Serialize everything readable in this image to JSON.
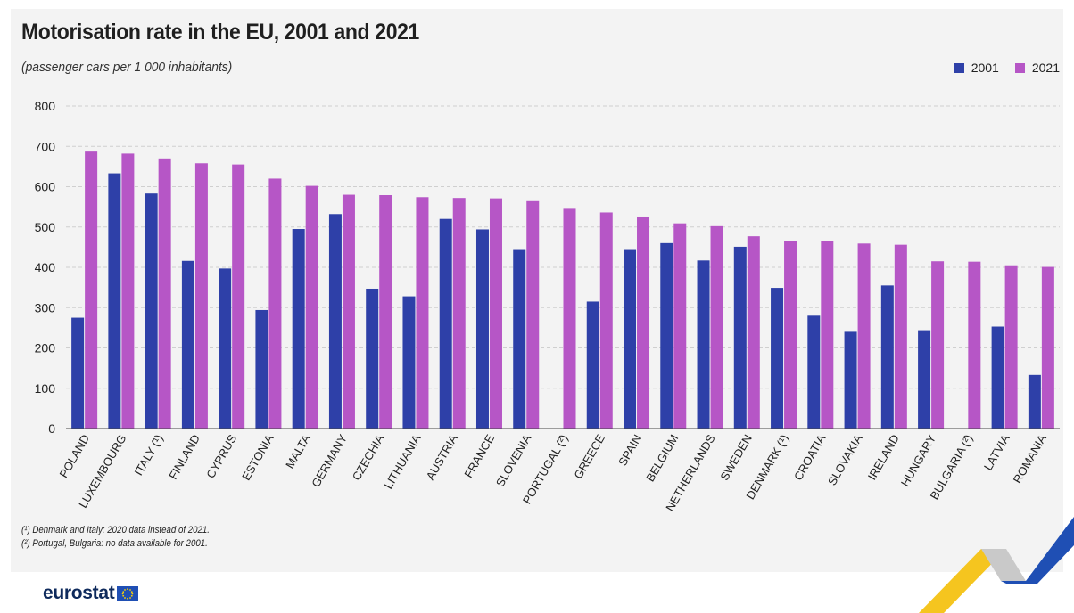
{
  "header": {
    "title": "Motorisation rate in the EU, 2001 and 2021",
    "subtitle": "(passenger cars per 1 000 inhabitants)"
  },
  "legend": [
    {
      "label": "2001",
      "color": "#2e40a8"
    },
    {
      "label": "2021",
      "color": "#b656c6"
    }
  ],
  "footnotes": [
    "(¹) Denmark and Italy: 2020 data instead of 2021.",
    "(²) Portugal, Bulgaria: no data available for 2001."
  ],
  "logo": {
    "text": "eurostat",
    "icon": "eu-flag-icon"
  },
  "colors": {
    "background": "#f3f3f3",
    "grid": "#cfcfcf",
    "series_2001": "#2e40a8",
    "series_2021": "#b656c6"
  },
  "chart_data": {
    "type": "bar",
    "title": "Motorisation rate in the EU, 2001 and 2021",
    "subtitle": "(passenger cars per 1 000 inhabitants)",
    "xlabel": "",
    "ylabel": "",
    "ylim": [
      0,
      800
    ],
    "yticks": [
      0,
      100,
      200,
      300,
      400,
      500,
      600,
      700,
      800
    ],
    "grid": true,
    "legend_position": "top-right",
    "categories": [
      "POLAND",
      "LUXEMBOURG",
      "ITALY (¹)",
      "FINLAND",
      "CYPRUS",
      "ESTONIA",
      "MALTA",
      "GERMANY",
      "CZECHIA",
      "LITHUANIA",
      "AUSTRIA",
      "FRANCE",
      "SLOVENIA",
      "PORTUGAL (²)",
      "GREECE",
      "SPAIN",
      "BELGIUM",
      "NETHERLANDS",
      "SWEDEN",
      "DENMARK (¹)",
      "CROATIA",
      "SLOVAKIA",
      "IRELAND",
      "HUNGARY",
      "BULGARIA (²)",
      "LATVIA",
      "ROMANIA"
    ],
    "series": [
      {
        "name": "2001",
        "color": "#2e40a8",
        "values": [
          275,
          633,
          583,
          416,
          397,
          294,
          495,
          532,
          347,
          328,
          520,
          494,
          443,
          null,
          315,
          443,
          460,
          417,
          451,
          349,
          280,
          240,
          355,
          244,
          null,
          253,
          133
        ]
      },
      {
        "name": "2021",
        "color": "#b656c6",
        "values": [
          687,
          682,
          670,
          658,
          655,
          620,
          602,
          580,
          579,
          574,
          572,
          571,
          564,
          545,
          536,
          526,
          509,
          502,
          477,
          466,
          466,
          459,
          456,
          415,
          414,
          405,
          401
        ]
      }
    ]
  }
}
